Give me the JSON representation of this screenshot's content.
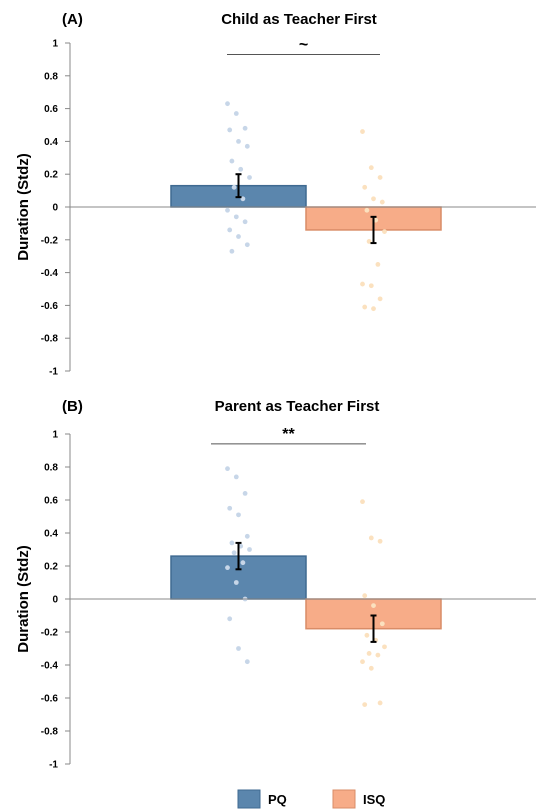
{
  "legend": {
    "items": [
      {
        "label": "PQ",
        "color": "#5b86ad",
        "stroke": "#3f6a91"
      },
      {
        "label": "ISQ",
        "color": "#f7ac88",
        "stroke": "#d98c67"
      }
    ]
  },
  "colors": {
    "pq_points": "#c7d6e8",
    "isq_points": "#fbe1bf",
    "axis": "#888888",
    "error_bar": "#000000"
  },
  "chart_data": [
    {
      "type": "bar",
      "panel_label": "(A)",
      "title": "Child as Teacher First",
      "ylabel": "Duration (Stdz)",
      "ylim": [
        -1,
        1
      ],
      "yticks": [
        1,
        0.8,
        0.6,
        0.4,
        0.2,
        0,
        -0.2,
        -0.4,
        -0.6,
        -0.8,
        -1
      ],
      "ytick_labels": [
        "1",
        "0.8",
        "0.6",
        "0.4",
        "0.2",
        "0",
        "-0.2",
        "-0.4",
        "-0.6",
        "-0.8",
        "-1"
      ],
      "categories": [
        "PQ",
        "ISQ"
      ],
      "values": [
        0.13,
        -0.14
      ],
      "error": [
        0.07,
        0.08
      ],
      "significance": {
        "label": "~",
        "y": 0.93
      },
      "points": [
        [
          0.63,
          0.57,
          0.48,
          0.47,
          0.4,
          0.37,
          0.28,
          0.23,
          0.18,
          0.12,
          0.05,
          -0.02,
          -0.06,
          -0.09,
          -0.14,
          -0.18,
          -0.23,
          -0.27
        ],
        [
          0.46,
          0.24,
          0.18,
          0.12,
          0.05,
          0.03,
          -0.02,
          -0.08,
          -0.15,
          -0.21,
          -0.35,
          -0.47,
          -0.48,
          -0.56,
          -0.61,
          -0.62
        ]
      ]
    },
    {
      "type": "bar",
      "panel_label": "(B)",
      "title": "Parent as Teacher First",
      "ylabel": "Duration (Stdz)",
      "ylim": [
        -1,
        1
      ],
      "yticks": [
        1,
        0.8,
        0.6,
        0.4,
        0.2,
        0,
        -0.2,
        -0.4,
        -0.6,
        -0.8,
        -1
      ],
      "ytick_labels": [
        "1",
        "0.8",
        "0.6",
        "0.4",
        "0.2",
        "0",
        "-0.2",
        "-0.4",
        "-0.6",
        "-0.8",
        "-1"
      ],
      "categories": [
        "PQ",
        "ISQ"
      ],
      "values": [
        0.26,
        -0.18
      ],
      "error": [
        0.08,
        0.08
      ],
      "significance": {
        "label": "**",
        "y": 0.94
      },
      "points": [
        [
          0.79,
          0.74,
          0.64,
          0.55,
          0.51,
          0.38,
          0.34,
          0.32,
          0.3,
          0.28,
          0.22,
          0.19,
          0.1,
          0.0,
          -0.12,
          -0.3,
          -0.38
        ],
        [
          0.59,
          0.37,
          0.35,
          0.02,
          -0.04,
          -0.15,
          -0.22,
          -0.25,
          -0.29,
          -0.33,
          -0.34,
          -0.38,
          -0.42,
          -0.63,
          -0.64
        ]
      ]
    }
  ]
}
